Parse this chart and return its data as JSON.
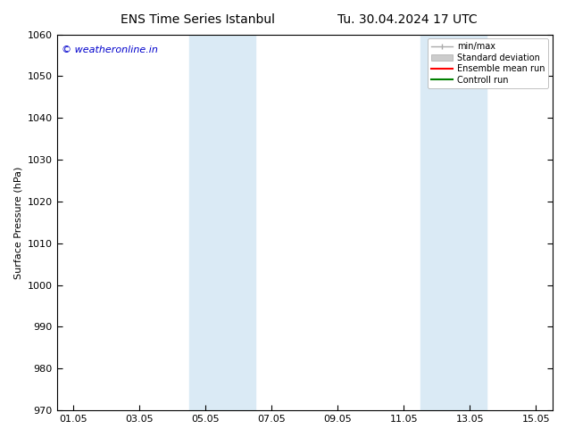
{
  "title_left": "ENS Time Series Istanbul",
  "title_right": "Tu. 30.04.2024 17 UTC",
  "ylabel": "Surface Pressure (hPa)",
  "ylim": [
    970,
    1060
  ],
  "yticks": [
    970,
    980,
    990,
    1000,
    1010,
    1020,
    1030,
    1040,
    1050,
    1060
  ],
  "xtick_labels": [
    "01.05",
    "03.05",
    "05.05",
    "07.05",
    "09.05",
    "11.05",
    "13.05",
    "15.05"
  ],
  "xtick_positions": [
    0,
    2,
    4,
    6,
    8,
    10,
    12,
    14
  ],
  "xlim": [
    -0.5,
    14.5
  ],
  "shaded_bands": [
    {
      "x_start": 3.5,
      "x_end": 5.5
    },
    {
      "x_start": 10.5,
      "x_end": 12.5
    }
  ],
  "shaded_color": "#daeaf5",
  "background_color": "#ffffff",
  "watermark_text": "© weatheronline.in",
  "watermark_color": "#0000cc",
  "legend_labels": [
    "min/max",
    "Standard deviation",
    "Ensemble mean run",
    "Controll run"
  ],
  "legend_colors": [
    "#aaaaaa",
    "#cccccc",
    "#ff0000",
    "#008000"
  ],
  "title_fontsize": 10,
  "axis_fontsize": 8,
  "tick_fontsize": 8
}
